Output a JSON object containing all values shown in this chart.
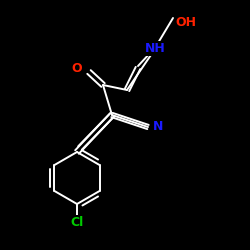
{
  "bg_color": "#000000",
  "bond_color": "#ffffff",
  "atom_colors": {
    "O": "#ff2200",
    "N": "#1a1aff",
    "Cl": "#00cc00",
    "C": "#ffffff"
  },
  "bond_lw": 1.4,
  "font_size": 9
}
